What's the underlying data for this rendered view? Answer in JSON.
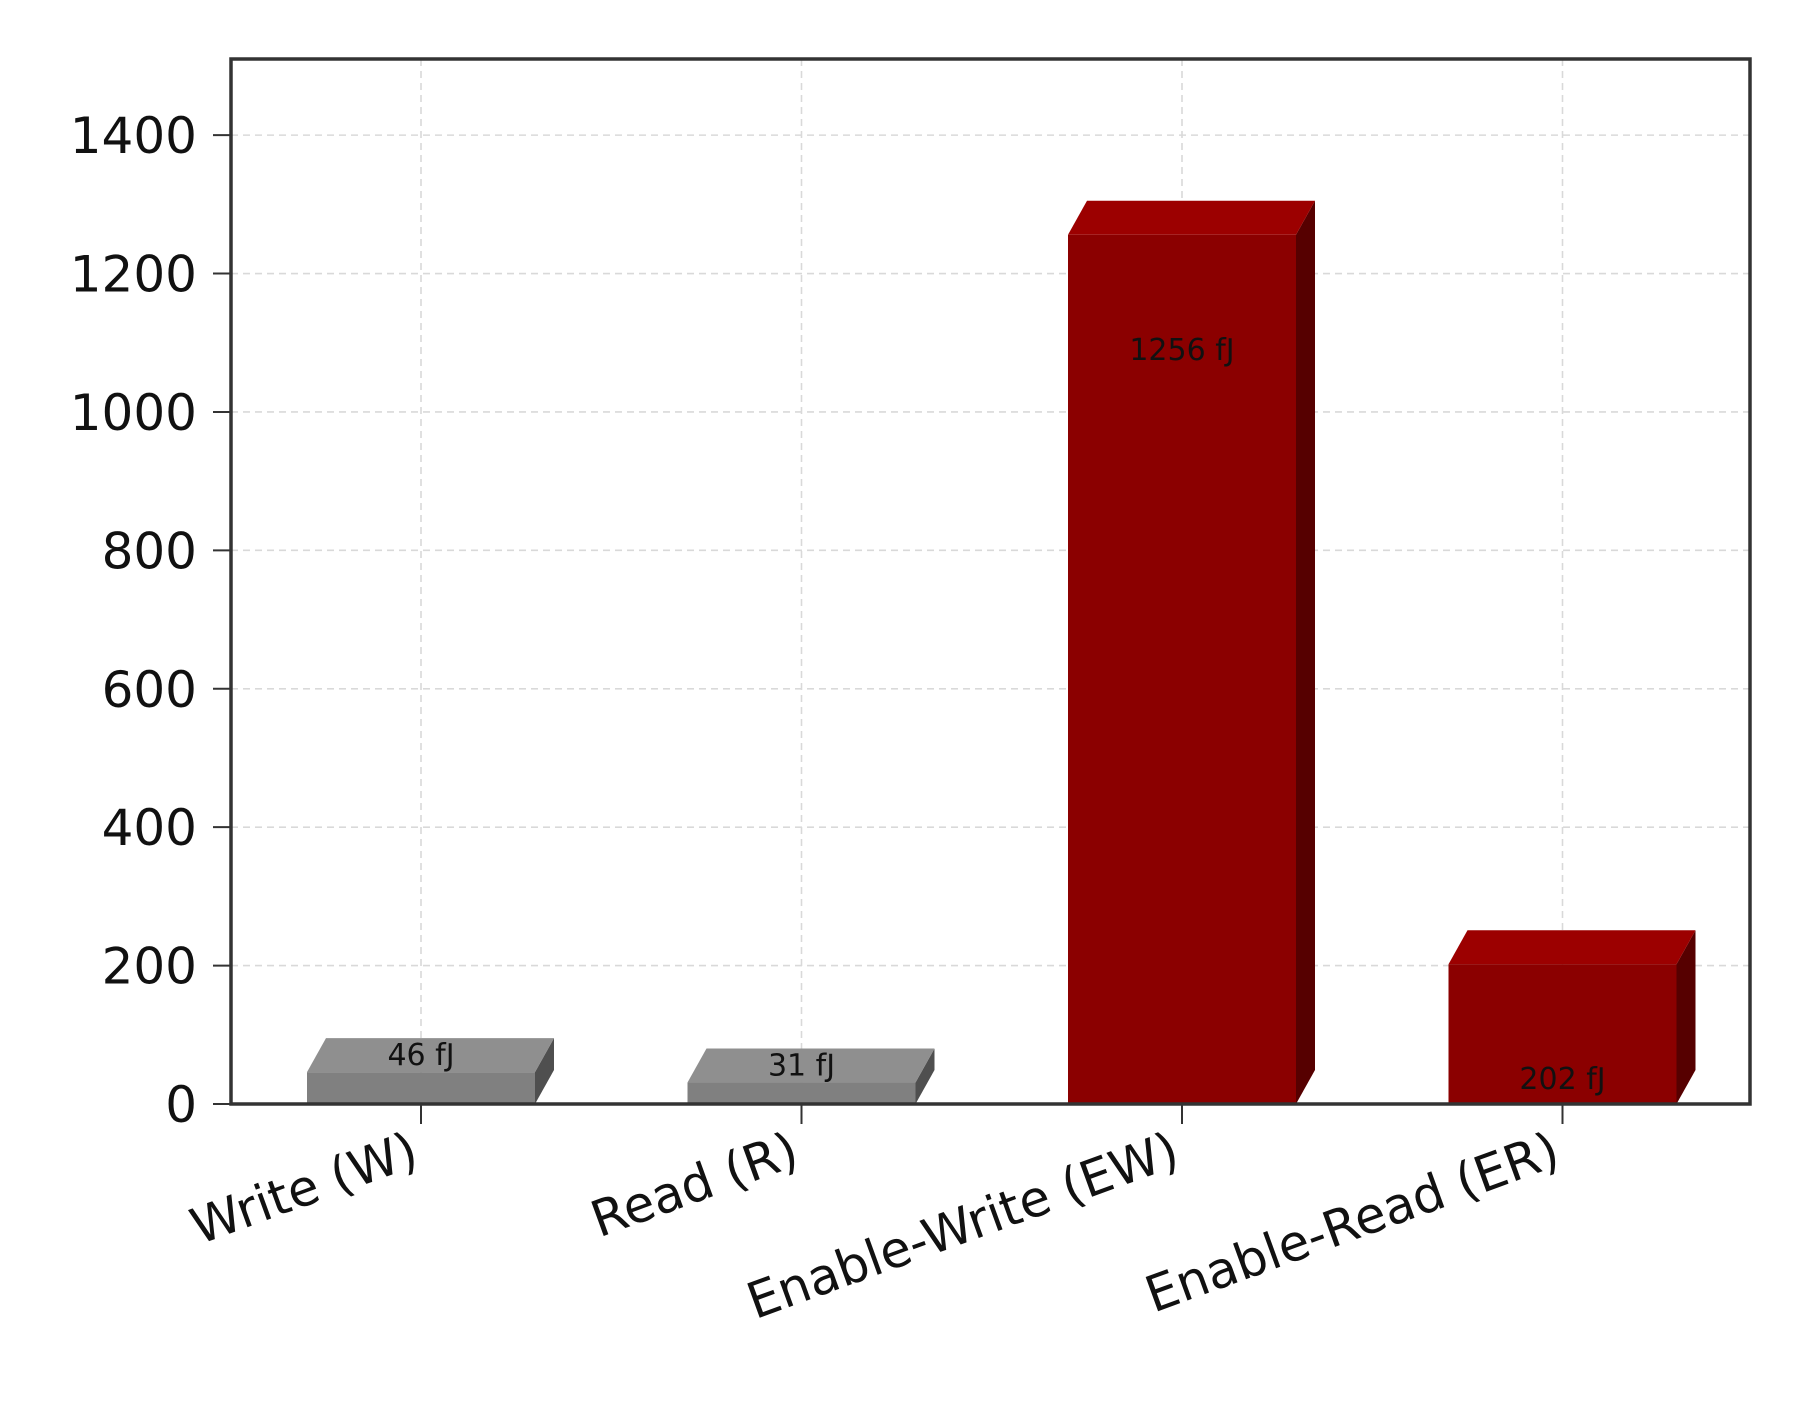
{
  "chart_data": {
    "type": "bar",
    "title": "",
    "xlabel": "",
    "ylabel": "",
    "categories": [
      "Write (W)",
      "Read (R)",
      "Enable-Write (EW)",
      "Enable-Read (ER)"
    ],
    "values": [
      46,
      31,
      1256,
      202
    ],
    "data_labels": [
      "46 fJ",
      "31 fJ",
      "1256 fJ",
      "202 fJ"
    ],
    "bar_colors": [
      "#808080",
      "#808080",
      "#8b0000",
      "#8b0000"
    ],
    "ylim": [
      0,
      1510
    ],
    "yticks": [
      0,
      200,
      400,
      600,
      800,
      1000,
      1200,
      1400
    ],
    "ytick_labels": [
      "0",
      "200",
      "400",
      "600",
      "800",
      "1000",
      "1200",
      "1400"
    ],
    "grid": true,
    "bar_style": "3d",
    "legend": "none"
  }
}
